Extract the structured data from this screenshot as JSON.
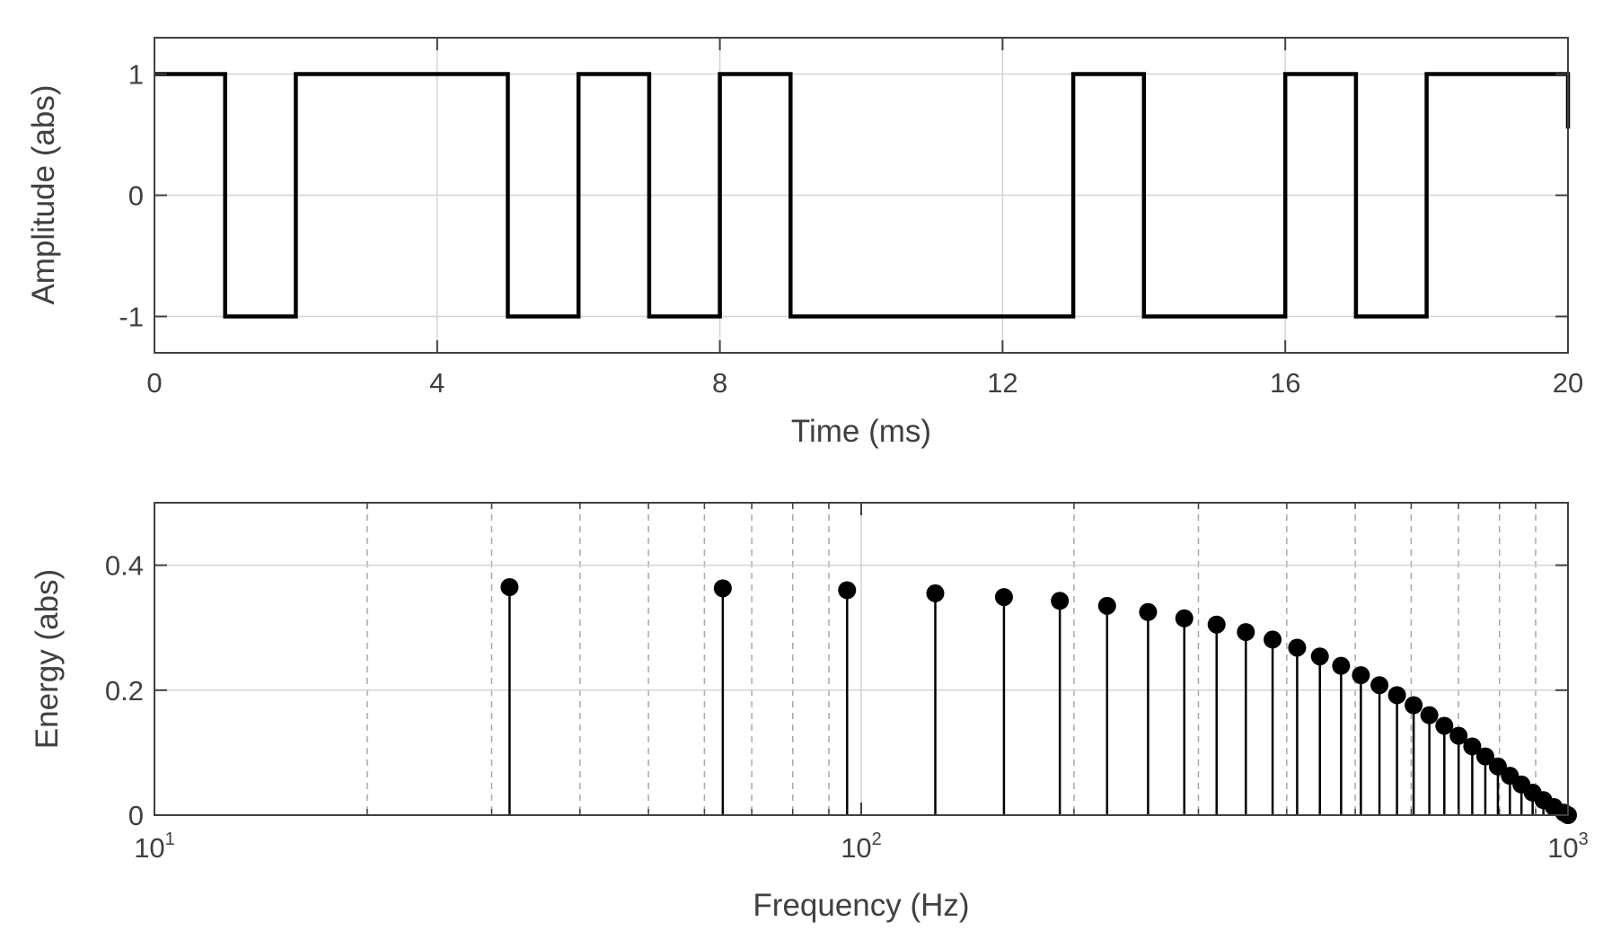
{
  "chart_data": [
    {
      "type": "line",
      "step": true,
      "xlabel": "Time (ms)",
      "ylabel": "Amplitude (abs)",
      "xlim": [
        0,
        20
      ],
      "ylim": [
        -1.3,
        1.3
      ],
      "xticks": [
        0,
        4,
        8,
        12,
        16,
        20
      ],
      "xtick_labels": [
        "0",
        "4",
        "8",
        "12",
        "16",
        "20"
      ],
      "yticks": [
        -1,
        0,
        1
      ],
      "ytick_labels": [
        "-1",
        "0",
        "1"
      ],
      "grid": true,
      "series": [
        {
          "color": "#000000",
          "x": [
            0,
            1,
            1,
            2,
            2,
            5,
            5,
            6,
            6,
            7,
            7,
            8,
            8,
            9,
            9,
            13,
            13,
            14,
            14,
            16,
            16,
            17,
            17,
            18,
            18,
            20,
            20
          ],
          "y": [
            1,
            1,
            -1,
            -1,
            1,
            1,
            -1,
            -1,
            1,
            1,
            -1,
            -1,
            1,
            1,
            -1,
            -1,
            1,
            1,
            -1,
            -1,
            1,
            1,
            -1,
            -1,
            1,
            1,
            0.55
          ]
        }
      ]
    },
    {
      "type": "stem",
      "xscale": "log",
      "xlabel": "Frequency (Hz)",
      "ylabel": "Energy (abs)",
      "xlim": [
        10,
        1000
      ],
      "ylim": [
        0,
        0.5
      ],
      "xticks": [
        10,
        100,
        1000
      ],
      "xtick_labels": [
        {
          "base": "10",
          "exp": "1"
        },
        {
          "base": "10",
          "exp": "2"
        },
        {
          "base": "10",
          "exp": "3"
        }
      ],
      "yticks": [
        0,
        0.2,
        0.4
      ],
      "ytick_labels": [
        "0",
        "0.2",
        "0.4"
      ],
      "grid": true,
      "minor_grid": "dashed",
      "series": [
        {
          "color": "#000000",
          "x": [
            31.8,
            63.7,
            95.5,
            127.3,
            159.2,
            191,
            222.8,
            254.6,
            286.5,
            318.3,
            350.1,
            382,
            413.8,
            445.6,
            477.5,
            509.3,
            541.1,
            572.9,
            604.8,
            636.6,
            668.4,
            700.3,
            732.1,
            763.9,
            795.8,
            827.6,
            859.4,
            891.3,
            923.1,
            954.9,
            986.8,
            1000
          ],
          "y": [
            0.365,
            0.363,
            0.36,
            0.355,
            0.349,
            0.343,
            0.335,
            0.325,
            0.315,
            0.305,
            0.293,
            0.281,
            0.268,
            0.254,
            0.239,
            0.224,
            0.208,
            0.192,
            0.176,
            0.16,
            0.143,
            0.127,
            0.11,
            0.094,
            0.078,
            0.063,
            0.049,
            0.036,
            0.024,
            0.013,
            0.004,
            0
          ]
        }
      ]
    }
  ]
}
